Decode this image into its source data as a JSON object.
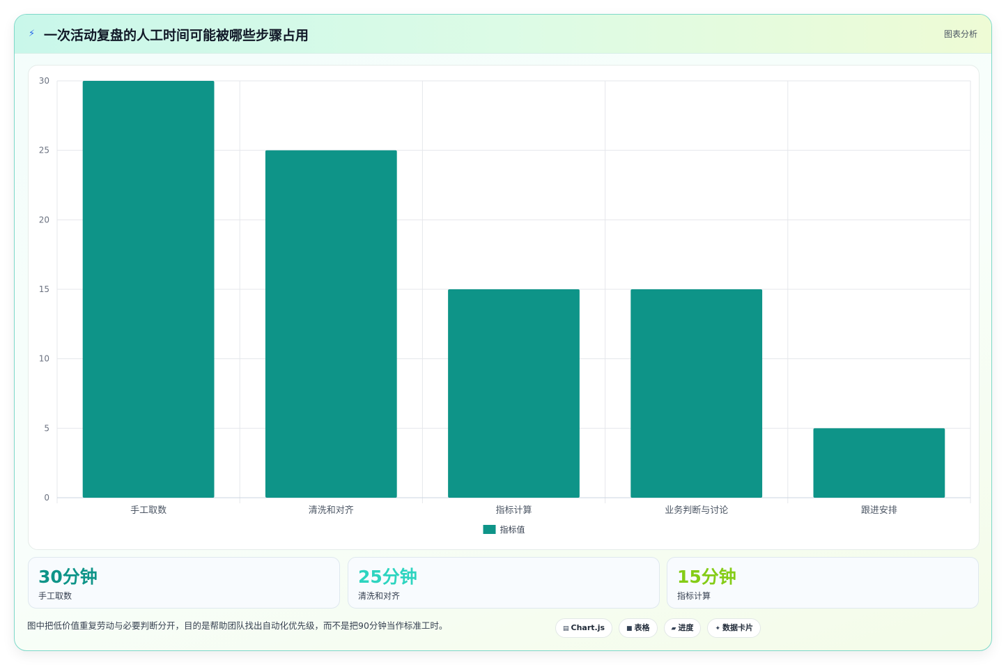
{
  "header": {
    "logo_icon": "bolt-icon",
    "title": "一次活动复盘的人工时间可能被哪些步骤占用",
    "tag": "图表分析"
  },
  "chart_data": {
    "type": "bar",
    "categories": [
      "手工取数",
      "清洗和对齐",
      "指标计算",
      "业务判断与讨论",
      "跟进安排"
    ],
    "series": [
      {
        "name": "指标值",
        "values": [
          30,
          25,
          15,
          15,
          5
        ],
        "color": "#0e9488"
      }
    ],
    "ylim": [
      0,
      30
    ],
    "yticks": [
      0,
      5,
      10,
      15,
      20,
      25,
      30
    ],
    "grid": true,
    "legend": "bottom"
  },
  "stats": [
    {
      "value": "30分钟",
      "label": "手工取数",
      "color": "#0e9488"
    },
    {
      "value": "25分钟",
      "label": "清洗和对齐",
      "color": "#2dd4bf"
    },
    {
      "value": "15分钟",
      "label": "指标计算",
      "color": "#84cc16"
    }
  ],
  "footnote": "图中把低价值重复劳动与必要判断分开，目的是帮助团队找出自动化优先级，而不是把90分钟当作标准工时。",
  "chips": [
    {
      "icon": "chart-icon",
      "glyph": "▤",
      "label": "Chart.js"
    },
    {
      "icon": "table-icon",
      "glyph": "■",
      "label": "表格"
    },
    {
      "icon": "progress-icon",
      "glyph": "▰",
      "label": "进度"
    },
    {
      "icon": "sparkle-icon",
      "glyph": "✦",
      "label": "数据卡片"
    }
  ]
}
